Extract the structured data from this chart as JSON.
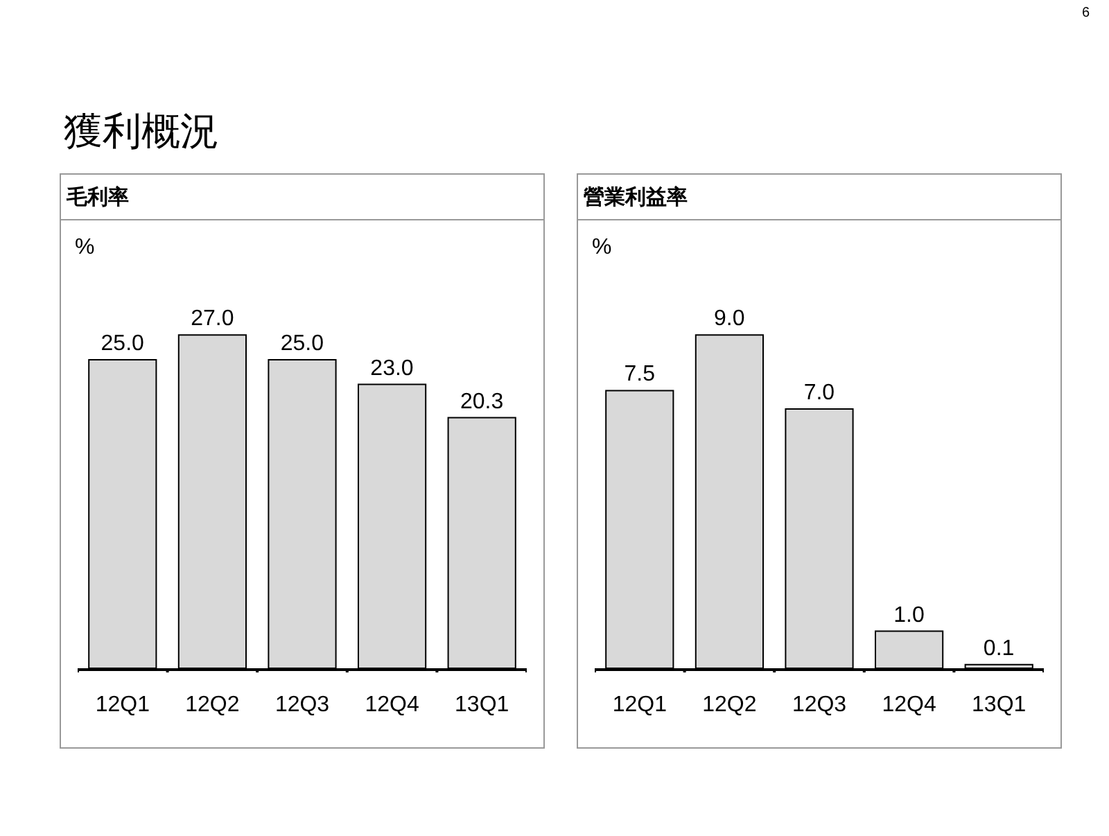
{
  "chart_data": [
    {
      "type": "other",
      "title": "獲利概況",
      "annotations": [
        "6"
      ]
    },
    {
      "type": "bar",
      "title": "毛利率",
      "ylabel": "%",
      "categories": [
        "12Q1",
        "12Q2",
        "12Q3",
        "12Q4",
        "13Q1"
      ],
      "values": [
        25.0,
        27.0,
        25.0,
        23.0,
        20.3
      ],
      "value_labels": [
        "25.0",
        "27.0",
        "25.0",
        "23.0",
        "20.3"
      ],
      "color": "#d9d9d9",
      "tick_labels": "x",
      "grid": false,
      "legend": false
    },
    {
      "type": "bar",
      "title": "營業利益率",
      "ylabel": "%",
      "categories": [
        "12Q1",
        "12Q2",
        "12Q3",
        "12Q4",
        "13Q1"
      ],
      "values": [
        7.5,
        9.0,
        7.0,
        1.0,
        0.1
      ],
      "value_labels": [
        "7.5",
        "9.0",
        "7.0",
        "1.0",
        "0.1"
      ],
      "color": "#d9d9d9",
      "tick_labels": "x",
      "grid": false,
      "legend": false
    }
  ]
}
